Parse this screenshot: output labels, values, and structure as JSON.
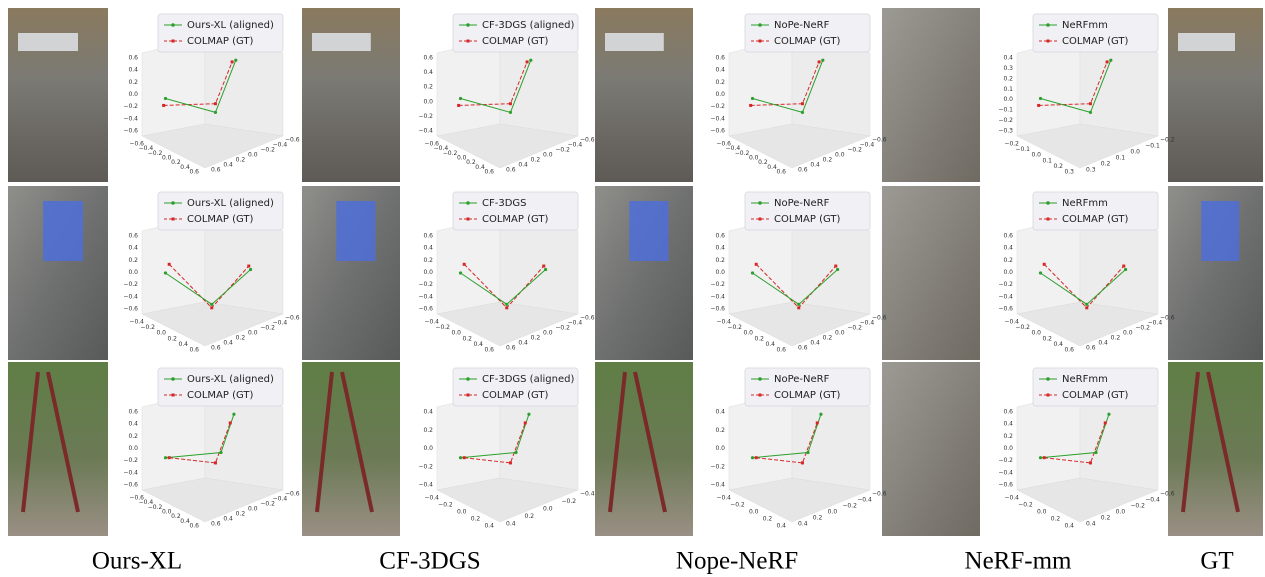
{
  "columns": [
    {
      "label": "Ours-XL"
    },
    {
      "label": "CF-3DGS"
    },
    {
      "label": "Nope-NeRF"
    },
    {
      "label": "NeRF-mm"
    },
    {
      "label": "GT"
    }
  ],
  "rows": [
    {
      "plots": [
        {
          "legend": [
            "Ours-XL (aligned)",
            "COLMAP (GT)"
          ],
          "z_ticks": [
            "0.6",
            "0.4",
            "0.2",
            "0.0",
            "−0.2",
            "−0.4",
            "−0.6"
          ],
          "x_ticks": [
            "−0.6",
            "−0.4",
            "−0.2",
            "0.0",
            "0.2",
            "0.4",
            "0.6"
          ],
          "y_ticks": [
            "0.6",
            "0.4",
            "0.2",
            "0.0",
            "−0.2",
            "−0.4",
            "−0.6"
          ]
        },
        {
          "legend": [
            "CF-3DGS (aligned)",
            "COLMAP (GT)"
          ],
          "z_ticks": [
            "0.6",
            "0.4",
            "0.2",
            "0.0",
            "−0.2",
            "−0.4"
          ],
          "x_ticks": [
            "−0.6",
            "−0.4",
            "−0.2",
            "0.0",
            "0.2",
            "0.4",
            "0.6"
          ],
          "y_ticks": [
            "0.6",
            "0.4",
            "0.2",
            "0.0",
            "−0.2",
            "−0.4",
            "−0.6"
          ]
        },
        {
          "legend": [
            "NoPe-NeRF",
            "COLMAP (GT)"
          ],
          "z_ticks": [
            "0.6",
            "0.4",
            "0.2",
            "0.0",
            "−0.2",
            "−0.4",
            "−0.6"
          ],
          "x_ticks": [
            "−0.6",
            "−0.4",
            "−0.2",
            "0.0",
            "0.2",
            "0.4",
            "0.6"
          ],
          "y_ticks": [
            "0.6",
            "0.4",
            "0.2",
            "0.0",
            "−0.2",
            "−0.4",
            "−0.6"
          ]
        },
        {
          "legend": [
            "NeRFmm",
            "COLMAP (GT)"
          ],
          "z_ticks": [
            "0.4",
            "0.3",
            "0.2",
            "0.1",
            "0.0",
            "−0.1",
            "−0.2",
            "−0.3"
          ],
          "x_ticks": [
            "−0.2",
            "−0.1",
            "0.0",
            "0.1",
            "0.2",
            "0.3"
          ],
          "y_ticks": [
            "0.3",
            "0.2",
            "0.1",
            "0.0",
            "−0.1",
            "−0.2"
          ]
        }
      ]
    },
    {
      "plots": [
        {
          "legend": [
            "Ours-XL (aligned)",
            "COLMAP (GT)"
          ],
          "z_ticks": [
            "0.6",
            "0.4",
            "0.2",
            "0.0",
            "−0.2",
            "−0.4",
            "−0.6"
          ],
          "x_ticks": [
            "−0.4",
            "−0.2",
            "0.0",
            "0.2",
            "0.4",
            "0.6"
          ],
          "y_ticks": [
            "0.6",
            "0.4",
            "0.2",
            "0.0",
            "−0.2",
            "−0.4",
            "−0.6"
          ]
        },
        {
          "legend": [
            "CF-3DGS",
            "COLMAP (GT)"
          ],
          "z_ticks": [
            "0.6",
            "0.4",
            "0.2",
            "0.0",
            "−0.2",
            "−0.4",
            "−0.6"
          ],
          "x_ticks": [
            "−0.4",
            "−0.2",
            "0.0",
            "0.2",
            "0.4",
            "0.6"
          ],
          "y_ticks": [
            "0.6",
            "0.4",
            "0.2",
            "0.0",
            "−0.2",
            "−0.4",
            "−0.6"
          ]
        },
        {
          "legend": [
            "NoPe-NeRF",
            "COLMAP (GT)"
          ],
          "z_ticks": [
            "0.6",
            "0.4",
            "0.2",
            "0.0",
            "−0.2",
            "−0.4",
            "−0.6"
          ],
          "x_ticks": [
            "−0.4",
            "−0.2",
            "0.0",
            "0.2",
            "0.4",
            "0.6"
          ],
          "y_ticks": [
            "0.6",
            "0.4",
            "0.2",
            "0.0",
            "−0.2",
            "−0.4",
            "−0.6"
          ]
        },
        {
          "legend": [
            "NeRFmm",
            "COLMAP (GT)"
          ],
          "z_ticks": [
            "0.6",
            "0.4",
            "0.2",
            "0.0",
            "−0.2",
            "−0.4",
            "−0.6"
          ],
          "x_ticks": [
            "−0.4",
            "−0.2",
            "0.0",
            "0.2",
            "0.4",
            "0.6"
          ],
          "y_ticks": [
            "0.6",
            "0.4",
            "0.2",
            "0.0",
            "−0.2",
            "−0.4",
            "−0.6"
          ]
        }
      ]
    },
    {
      "plots": [
        {
          "legend": [
            "Ours-XL (aligned)",
            "COLMAP (GT)"
          ],
          "z_ticks": [
            "0.6",
            "0.4",
            "0.2",
            "0.0",
            "−0.2",
            "−0.4",
            "−0.6"
          ],
          "x_ticks": [
            "−0.6",
            "−0.4",
            "−0.2",
            "0.0",
            "0.2",
            "0.4",
            "0.6"
          ],
          "y_ticks": [
            "0.6",
            "0.4",
            "0.2",
            "0.0",
            "−0.2",
            "−0.4",
            "−0.6"
          ]
        },
        {
          "legend": [
            "CF-3DGS (aligned)",
            "COLMAP (GT)"
          ],
          "z_ticks": [
            "0.4",
            "0.2",
            "0.0",
            "−0.2",
            "−0.4"
          ],
          "x_ticks": [
            "−0.4",
            "−0.2",
            "0.0",
            "0.2",
            "0.4"
          ],
          "y_ticks": [
            "0.4",
            "0.2",
            "0.0",
            "−0.2",
            "−0.4"
          ]
        },
        {
          "legend": [
            "NoPe-NeRF",
            "COLMAP (GT)"
          ],
          "z_ticks": [
            "0.4",
            "0.2",
            "0.0",
            "−0.2",
            "−0.4"
          ],
          "x_ticks": [
            "−0.4",
            "−0.2",
            "0.0",
            "0.2",
            "0.4"
          ],
          "y_ticks": [
            "0.4",
            "0.2",
            "0.0",
            "−0.2",
            "−0.4",
            "−0.6"
          ]
        },
        {
          "legend": [
            "NeRFmm",
            "COLMAP (GT)"
          ],
          "z_ticks": [
            "0.6",
            "0.4",
            "0.2",
            "0.0",
            "−0.2",
            "−0.4",
            "−0.6"
          ],
          "x_ticks": [
            "−0.4",
            "−0.2",
            "0.0",
            "0.2",
            "0.4"
          ],
          "y_ticks": [
            "0.4",
            "0.2",
            "0.0",
            "−0.2",
            "−0.4",
            "−0.6"
          ]
        }
      ]
    }
  ]
}
